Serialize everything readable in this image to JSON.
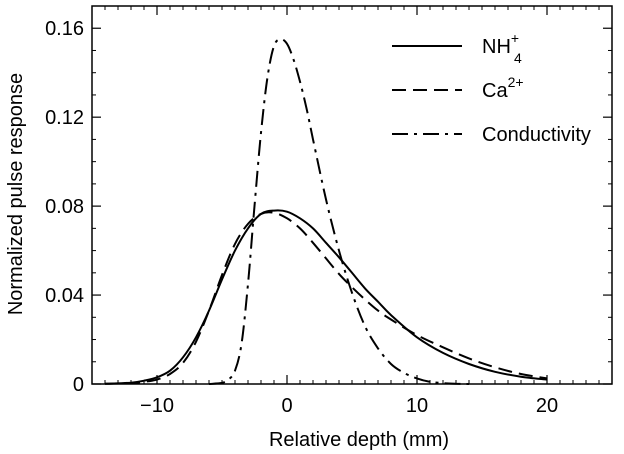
{
  "chart_data": {
    "type": "line",
    "xlabel": "Relative depth (mm)",
    "ylabel": "Normalized pulse response",
    "xlim": [
      -15,
      25
    ],
    "ylim": [
      0,
      0.17
    ],
    "x_ticks": [
      -10,
      0,
      10,
      20
    ],
    "x_tick_labels": [
      "−10",
      "0",
      "10",
      "20"
    ],
    "y_ticks": [
      0,
      0.04,
      0.08,
      0.12,
      0.16
    ],
    "y_tick_labels": [
      "0",
      "0.04",
      "0.08",
      "0.12",
      "0.16"
    ],
    "grid": false,
    "legend_position": "top-right",
    "series": [
      {
        "name": "NH4+",
        "label_main": "NH",
        "label_sub": "4",
        "label_sup": "+",
        "style": "solid",
        "x": [
          -14,
          -12,
          -11,
          -10,
          -9,
          -8,
          -7,
          -6,
          -5,
          -4,
          -3,
          -2,
          -1,
          0,
          1,
          2,
          3,
          4,
          5,
          6,
          7,
          8,
          10,
          12,
          14,
          16,
          18,
          20
        ],
        "y": [
          0.0001,
          0.0006,
          0.0015,
          0.003,
          0.006,
          0.012,
          0.021,
          0.033,
          0.047,
          0.06,
          0.07,
          0.0765,
          0.078,
          0.0775,
          0.0745,
          0.07,
          0.0635,
          0.057,
          0.05,
          0.043,
          0.037,
          0.031,
          0.021,
          0.014,
          0.009,
          0.0055,
          0.0033,
          0.002
        ]
      },
      {
        "name": "Ca2+",
        "label_main": "Ca",
        "label_sup": "2+",
        "style": "dashed",
        "x": [
          -14,
          -12,
          -11,
          -10,
          -9,
          -8,
          -7,
          -6,
          -5,
          -4,
          -3,
          -2,
          -1,
          0,
          1,
          2,
          3,
          4,
          5,
          6,
          7,
          8,
          10,
          12,
          14,
          16,
          18,
          20
        ],
        "y": [
          0.0001,
          0.0004,
          0.001,
          0.002,
          0.0045,
          0.0095,
          0.019,
          0.033,
          0.049,
          0.063,
          0.072,
          0.0765,
          0.077,
          0.0745,
          0.07,
          0.0635,
          0.0565,
          0.0495,
          0.0435,
          0.038,
          0.033,
          0.029,
          0.022,
          0.0165,
          0.0115,
          0.0075,
          0.0045,
          0.0025
        ]
      },
      {
        "name": "Conductivity",
        "label_main": "Conductivity",
        "style": "dashdot",
        "x": [
          -6,
          -5,
          -4.5,
          -4,
          -3.5,
          -3,
          -2.5,
          -2,
          -1.5,
          -1,
          -0.5,
          0,
          0.5,
          1,
          1.5,
          2,
          3,
          4,
          5,
          6,
          7,
          8,
          9,
          10,
          11,
          12,
          13,
          14
        ],
        "y": [
          0,
          0.0005,
          0.002,
          0.006,
          0.018,
          0.045,
          0.08,
          0.113,
          0.138,
          0.152,
          0.155,
          0.153,
          0.146,
          0.136,
          0.124,
          0.11,
          0.083,
          0.06,
          0.041,
          0.026,
          0.016,
          0.009,
          0.005,
          0.0025,
          0.001,
          0.0004,
          0.0001,
          0
        ]
      }
    ]
  }
}
